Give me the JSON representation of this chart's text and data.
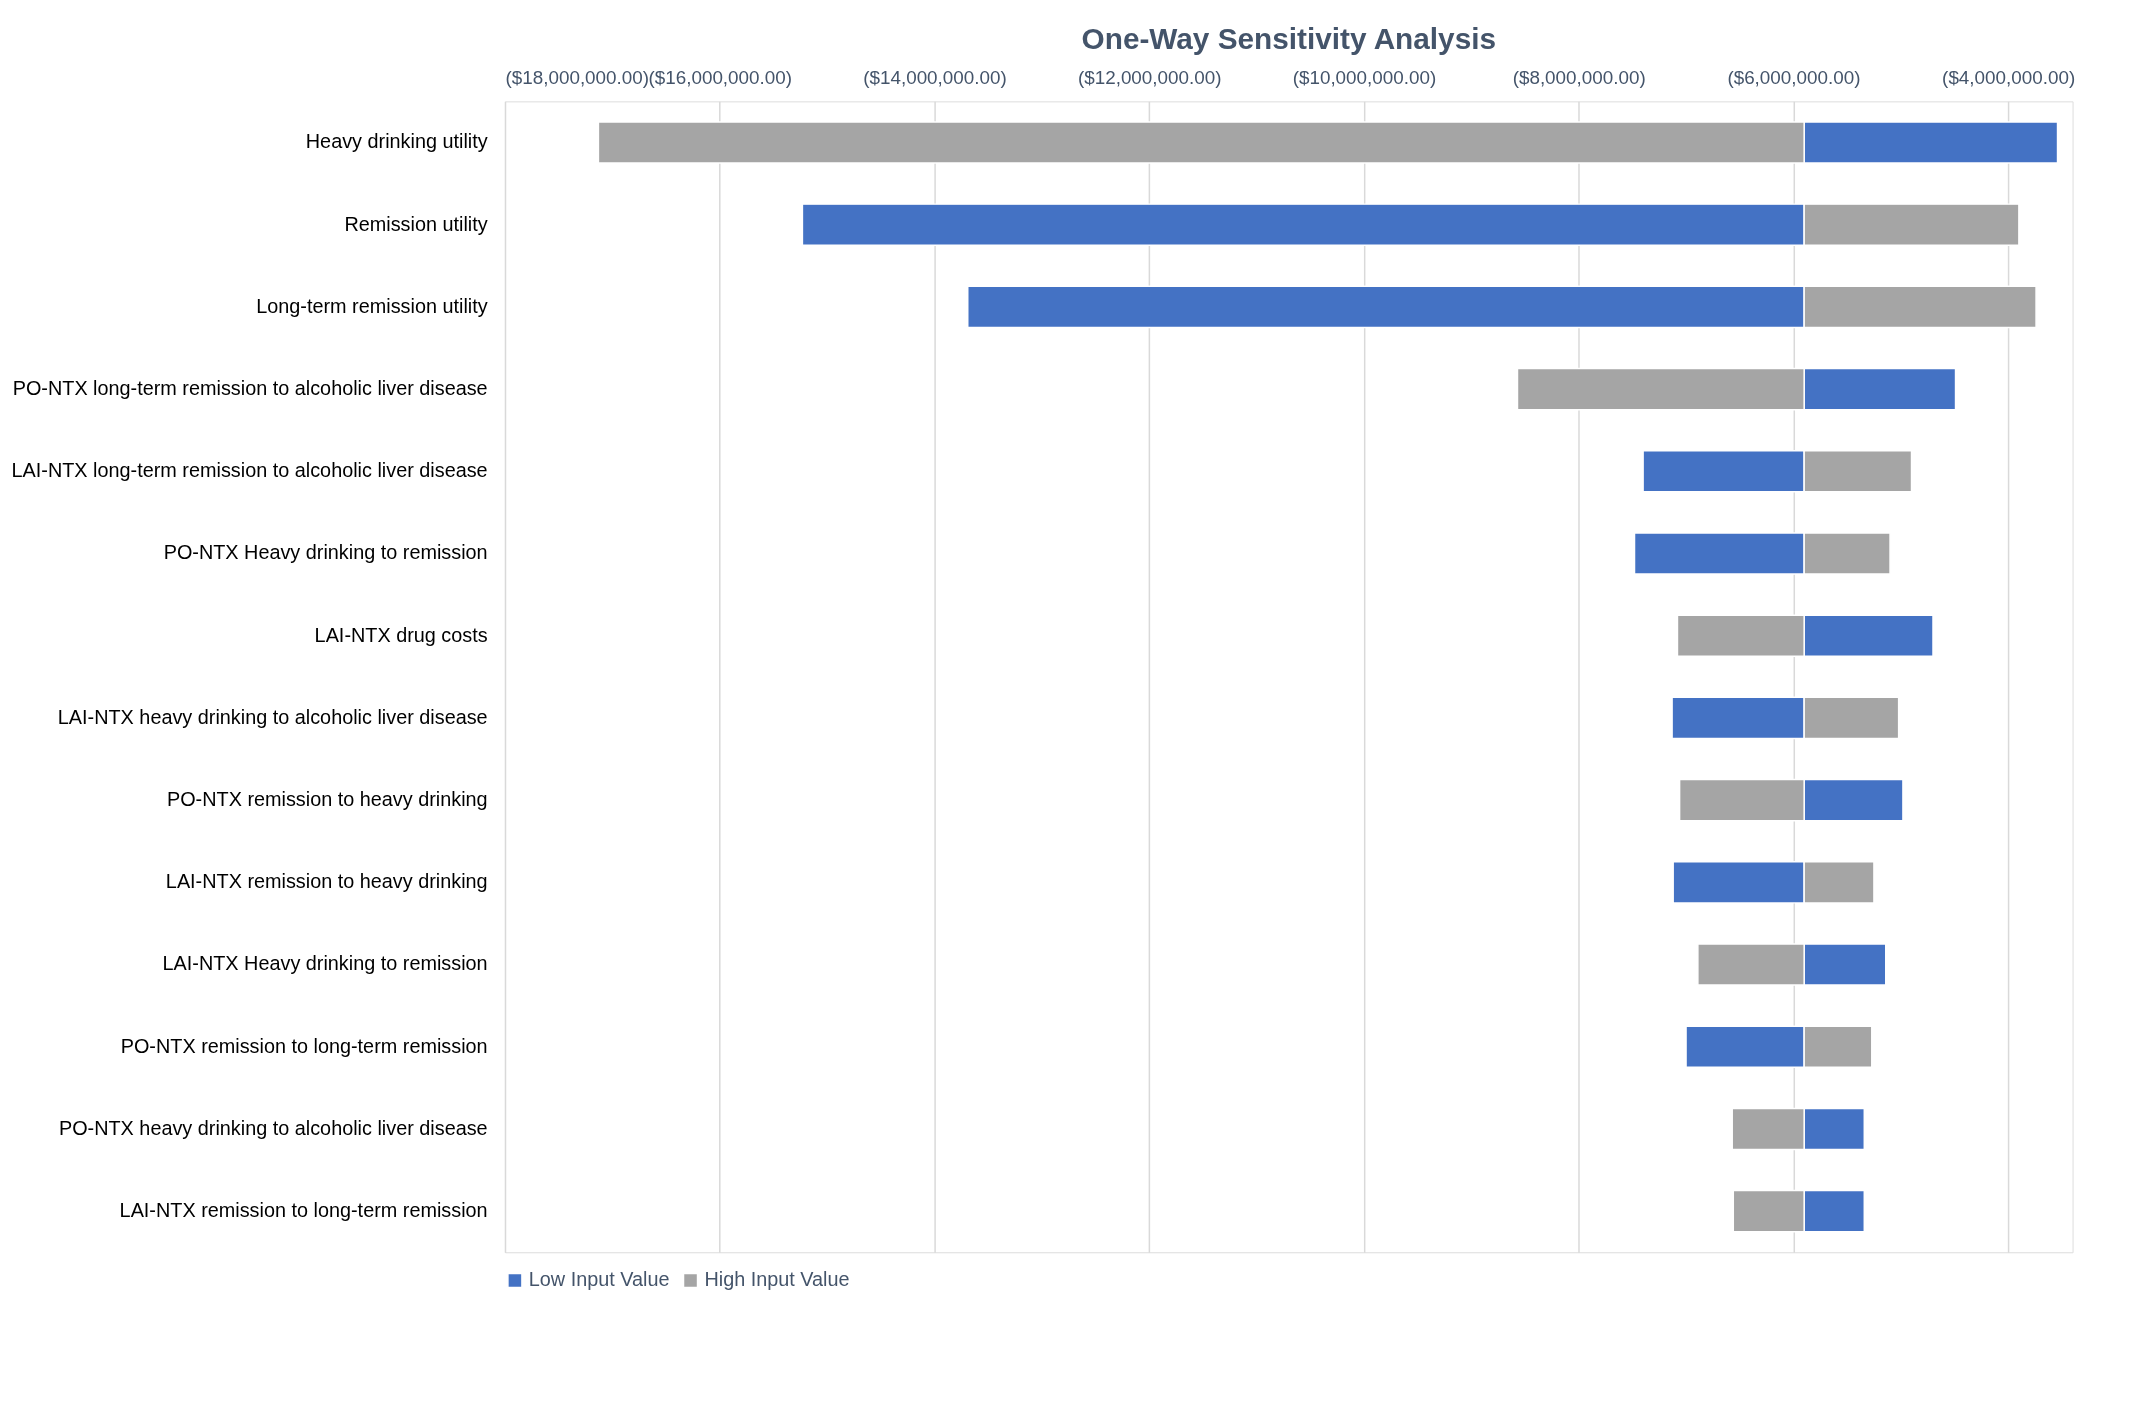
{
  "chart_data": {
    "type": "bar",
    "orientation": "horizontal",
    "title": "One-Way Sensitivity Analysis",
    "categories": [
      "Heavy drinking utility",
      "Remission utility",
      "Long-term remission utility",
      "PO-NTX long-term remission to alcoholic liver disease",
      "LAI-NTX long-term remission to alcoholic liver disease",
      "PO-NTX Heavy drinking to remission",
      "LAI-NTX drug costs",
      "LAI-NTX heavy drinking to alcoholic liver disease",
      "PO-NTX remission to heavy drinking",
      "LAI-NTX remission to heavy drinking",
      "LAI-NTX Heavy drinking to remission",
      "PO-NTX remission to long-term remission",
      "PO-NTX heavy drinking to alcoholic liver disease",
      "LAI-NTX remission to long-term remission"
    ],
    "series": [
      {
        "name": "Low Input Value",
        "color": "#4472c4",
        "base": [
          -5900000,
          -5900000,
          -5900000,
          -5900000,
          -5900000,
          -5900000,
          -5900000,
          -5900000,
          -5900000,
          -5900000,
          -5900000,
          -5900000,
          -5900000,
          -5900000
        ],
        "values": [
          2360000,
          -9330000,
          -7790000,
          1410000,
          -1500000,
          -1580000,
          1200000,
          -1230000,
          920000,
          -1220000,
          760000,
          -1100000,
          560000,
          560000
        ]
      },
      {
        "name": "High Input Value",
        "color": "#a5a5a5",
        "base": [
          -5900000,
          -5900000,
          -5900000,
          -5900000,
          -5900000,
          -5900000,
          -5900000,
          -5900000,
          -5900000,
          -5900000,
          -5900000,
          -5900000,
          -5900000,
          -5900000
        ],
        "values": [
          -11230000,
          2000000,
          2160000,
          -2670000,
          1000000,
          800000,
          -1180000,
          880000,
          -1160000,
          650000,
          -990000,
          630000,
          -670000,
          -660000
        ]
      }
    ],
    "xlim": [
      -18000000,
      -3400000
    ],
    "xticks": [
      {
        "value": -18000000,
        "label": "($18,000,000.00)"
      },
      {
        "value": -16000000,
        "label": "($16,000,000.00)"
      },
      {
        "value": -14000000,
        "label": "($14,000,000.00)"
      },
      {
        "value": -12000000,
        "label": "($12,000,000.00)"
      },
      {
        "value": -10000000,
        "label": "($10,000,000.00)"
      },
      {
        "value": -8000000,
        "label": "($8,000,000.00)"
      },
      {
        "value": -6000000,
        "label": "($6,000,000.00)"
      },
      {
        "value": -4000000,
        "label": "($4,000,000.00)"
      }
    ],
    "grid": "x",
    "legend": "bottom"
  }
}
